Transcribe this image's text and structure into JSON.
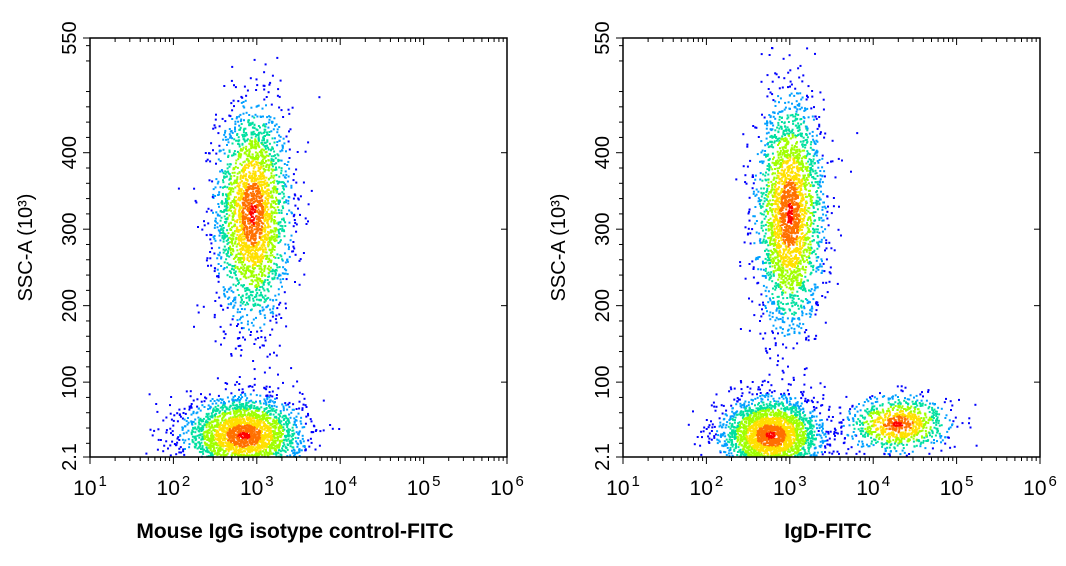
{
  "chart_data": [
    {
      "type": "scatter",
      "subtype": "flow-cytometry density plot",
      "xlabel": "Mouse IgG isotype control-FITC",
      "ylabel": "SSC-A",
      "ylabel_unit": "(10³)",
      "x_scale": "log",
      "xlim": [
        10,
        1000000
      ],
      "x_ticks": [
        10,
        100,
        1000,
        10000,
        100000,
        1000000
      ],
      "x_tick_labels": [
        {
          "base": "10",
          "exp": "1"
        },
        {
          "base": "10",
          "exp": "2"
        },
        {
          "base": "10",
          "exp": "3"
        },
        {
          "base": "10",
          "exp": "4"
        },
        {
          "base": "10",
          "exp": "5"
        },
        {
          "base": "10",
          "exp": "6"
        }
      ],
      "ylim": [
        2.1,
        550
      ],
      "y_ticks": [
        2.1,
        100,
        200,
        300,
        400,
        550
      ],
      "y_tick_labels": [
        "2.1",
        "100",
        "200",
        "300",
        "400",
        "550"
      ],
      "color_scale": [
        "#0000ff",
        "#00a0ff",
        "#00e0a0",
        "#a0ff00",
        "#ffe000",
        "#ff7000",
        "#ff0000"
      ],
      "populations": [
        {
          "center": [
            900,
            320
          ],
          "spread_log_x": 0.22,
          "spread_y": 70,
          "density": "high"
        },
        {
          "center": [
            700,
            30
          ],
          "spread_log_x": 0.35,
          "spread_y": 25,
          "density": "high"
        }
      ]
    },
    {
      "type": "scatter",
      "subtype": "flow-cytometry density plot",
      "xlabel": "IgD-FITC",
      "ylabel": "SSC-A",
      "ylabel_unit": "(10³)",
      "x_scale": "log",
      "xlim": [
        10,
        1000000
      ],
      "x_ticks": [
        10,
        100,
        1000,
        10000,
        100000,
        1000000
      ],
      "x_tick_labels": [
        {
          "base": "10",
          "exp": "1"
        },
        {
          "base": "10",
          "exp": "2"
        },
        {
          "base": "10",
          "exp": "3"
        },
        {
          "base": "10",
          "exp": "4"
        },
        {
          "base": "10",
          "exp": "5"
        },
        {
          "base": "10",
          "exp": "6"
        }
      ],
      "ylim": [
        2.1,
        550
      ],
      "y_ticks": [
        2.1,
        100,
        200,
        300,
        400,
        550
      ],
      "y_tick_labels": [
        "2.1",
        "100",
        "200",
        "300",
        "400",
        "550"
      ],
      "color_scale": [
        "#0000ff",
        "#00a0ff",
        "#00e0a0",
        "#a0ff00",
        "#ffe000",
        "#ff7000",
        "#ff0000"
      ],
      "populations": [
        {
          "center": [
            1000,
            320
          ],
          "spread_log_x": 0.2,
          "spread_y": 75,
          "density": "high"
        },
        {
          "center": [
            600,
            30
          ],
          "spread_log_x": 0.3,
          "spread_y": 25,
          "density": "high"
        },
        {
          "center": [
            20000,
            45
          ],
          "spread_log_x": 0.3,
          "spread_y": 18,
          "density": "medium"
        }
      ]
    }
  ]
}
